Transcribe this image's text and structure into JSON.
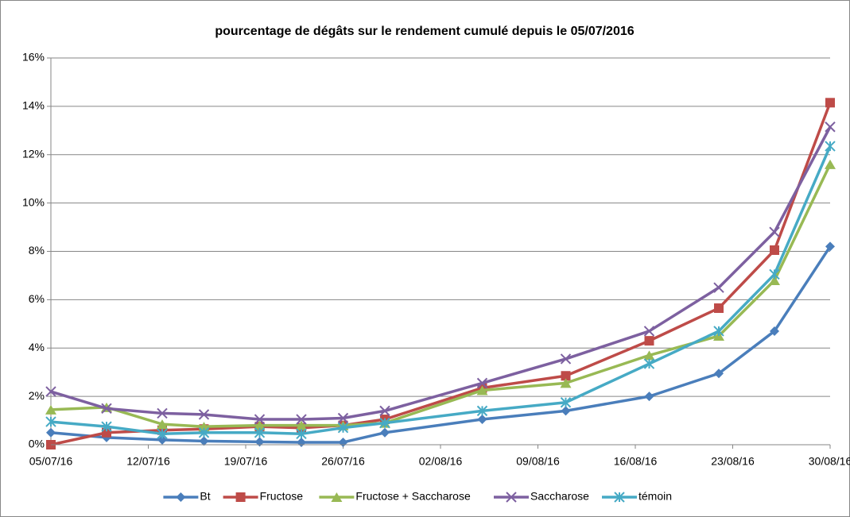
{
  "chart_data": {
    "type": "line",
    "title": "pourcentage de dégâts sur le rendement cumulé depuis le 05/07/2016",
    "x": [
      "05/07/16",
      "09/07/16",
      "13/07/16",
      "16/07/16",
      "20/07/16",
      "23/07/16",
      "26/07/16",
      "29/07/16",
      "05/08/16",
      "11/08/16",
      "17/08/16",
      "22/08/16",
      "26/08/16",
      "30/08/16"
    ],
    "xlim": [
      "05/07/16",
      "30/08/16"
    ],
    "xticks": [
      "05/07/16",
      "12/07/16",
      "19/07/16",
      "26/07/16",
      "02/08/16",
      "09/08/16",
      "16/08/16",
      "23/08/16",
      "30/08/16"
    ],
    "ylim": [
      0,
      16
    ],
    "yticks": [
      {
        "value": 0,
        "label": "0%"
      },
      {
        "value": 2,
        "label": "2%"
      },
      {
        "value": 4,
        "label": "4%"
      },
      {
        "value": 6,
        "label": "6%"
      },
      {
        "value": 8,
        "label": "8%"
      },
      {
        "value": 10,
        "label": "10%"
      },
      {
        "value": 12,
        "label": "12%"
      },
      {
        "value": 14,
        "label": "14%"
      },
      {
        "value": 16,
        "label": "16%"
      }
    ],
    "grid": true,
    "legend": "bottom",
    "series": [
      {
        "name": "Bt",
        "color": "#4a7ebb",
        "marker": "diamond",
        "values": [
          0.5,
          0.3,
          0.2,
          0.15,
          0.12,
          0.1,
          0.1,
          0.5,
          1.05,
          1.4,
          2.0,
          2.95,
          4.7,
          8.2
        ]
      },
      {
        "name": "Fructose",
        "color": "#be4b48",
        "marker": "square",
        "values": [
          0,
          0.5,
          0.6,
          0.65,
          0.75,
          0.7,
          0.8,
          1.05,
          2.35,
          2.85,
          4.3,
          5.65,
          8.05,
          14.15
        ]
      },
      {
        "name": "Fructose + Saccharose",
        "color": "#98b954",
        "marker": "triangle",
        "values": [
          1.45,
          1.55,
          0.85,
          0.75,
          0.8,
          0.8,
          0.8,
          0.9,
          2.25,
          2.55,
          3.7,
          4.5,
          6.8,
          11.6
        ]
      },
      {
        "name": "Saccharose",
        "color": "#7d60a0",
        "marker": "x",
        "values": [
          2.2,
          1.5,
          1.3,
          1.25,
          1.05,
          1.05,
          1.1,
          1.4,
          2.55,
          3.55,
          4.7,
          6.5,
          8.8,
          13.15
        ]
      },
      {
        "name": "témoin",
        "color": "#46aac5",
        "marker": "star",
        "values": [
          0.95,
          0.75,
          0.45,
          0.5,
          0.5,
          0.45,
          0.7,
          0.9,
          1.4,
          1.75,
          3.35,
          4.7,
          7.05,
          12.35
        ]
      }
    ]
  }
}
